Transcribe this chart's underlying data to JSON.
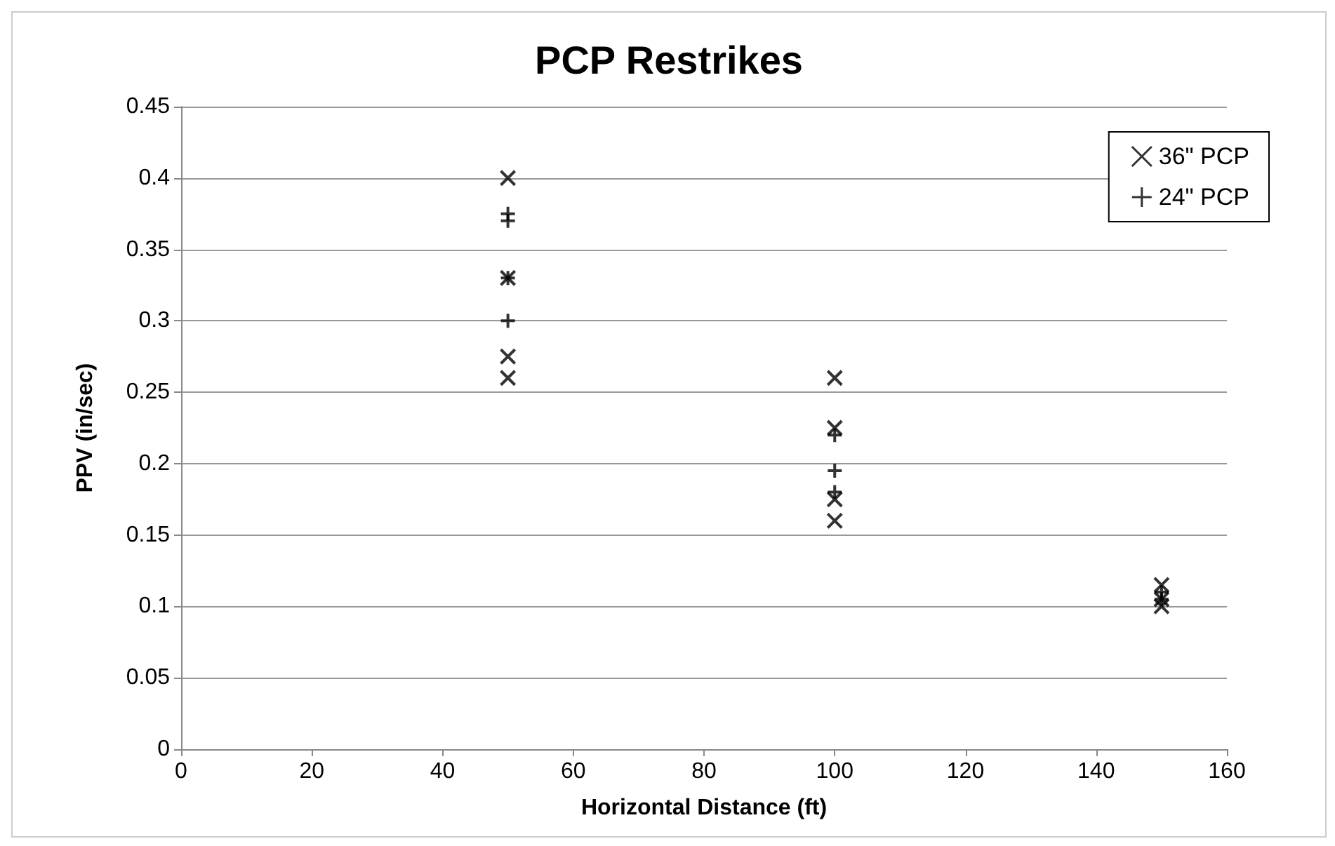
{
  "chart_data": {
    "type": "scatter",
    "title": "PCP Restrikes",
    "xlabel": "Horizontal Distance (ft)",
    "ylabel": "PPV (in/sec)",
    "series": [
      {
        "name": "36\" PCP",
        "color": "#000000",
        "marker": "cross",
        "x": [
          50,
          50,
          50,
          50,
          100,
          100,
          100,
          100,
          150,
          150,
          150
        ],
        "values": [
          0.4,
          0.33,
          0.275,
          0.26,
          0.26,
          0.225,
          0.175,
          0.16,
          0.115,
          0.105,
          0.1
        ]
      },
      {
        "name": "24\" PCP",
        "color": "#000000",
        "marker": "plus",
        "x": [
          50,
          50,
          50,
          50,
          100,
          100,
          100,
          150,
          150
        ],
        "values": [
          0.375,
          0.37,
          0.33,
          0.3,
          0.22,
          0.195,
          0.18,
          0.11,
          0.105
        ]
      }
    ],
    "xlim": [
      0,
      160
    ],
    "xticks": [
      0,
      20,
      40,
      60,
      80,
      100,
      120,
      140,
      160
    ],
    "ylim": [
      0,
      0.45
    ],
    "yticks": [
      0,
      0.05,
      0.1,
      0.15,
      0.2,
      0.25,
      0.3,
      0.35,
      0.4,
      0.45
    ],
    "grid": "y",
    "legend": "top right"
  }
}
